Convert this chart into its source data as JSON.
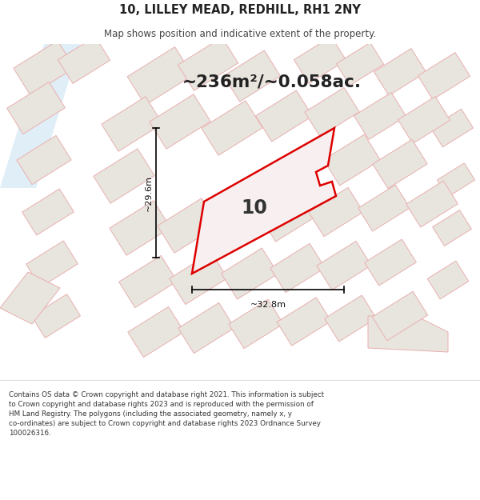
{
  "title": "10, LILLEY MEAD, REDHILL, RH1 2NY",
  "subtitle": "Map shows position and indicative extent of the property.",
  "area_text": "~236m²/~0.058ac.",
  "label_number": "10",
  "dim_vertical": "~29.6m",
  "dim_horizontal": "~32.8m",
  "footer_line1": "Contains OS data © Crown copyright and database right 2021. This information is subject",
  "footer_line2": "to Crown copyright and database rights 2023 and is reproduced with the permission of",
  "footer_line3": "HM Land Registry. The polygons (including the associated geometry, namely x, y",
  "footer_line4": "co-ordinates) are subject to Crown copyright and database rights 2023 Ordnance Survey",
  "footer_line5": "100026316.",
  "bg_color": "#f5f3f0",
  "map_bg": "#f5f3f0",
  "building_fill": "#e8e4de",
  "building_edge": "#e8b0b0",
  "road_color": "#e0d8d0",
  "highlight_fill": "#f8f0f0",
  "highlight_edge": "#dd0000",
  "water_color": "#d4e8f5",
  "white_bg": "#ffffff",
  "footer_color": "#333333",
  "title_color": "#222222",
  "subtitle_color": "#444444"
}
